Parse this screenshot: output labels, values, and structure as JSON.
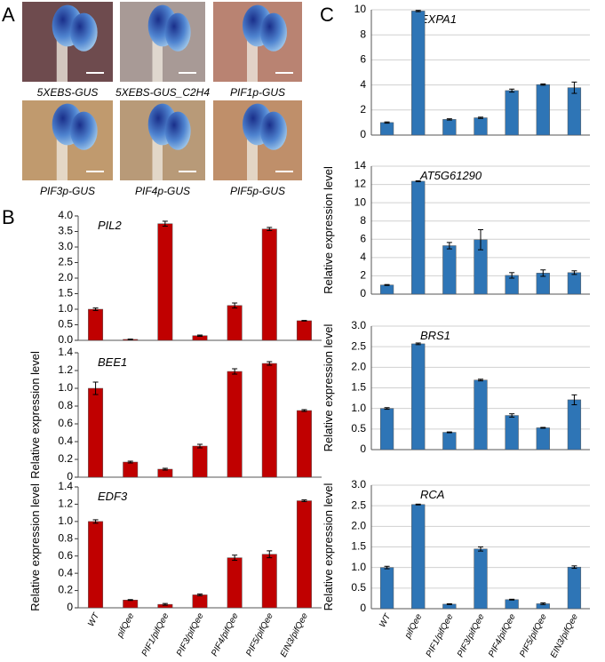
{
  "panel_labels": [
    "A",
    "B",
    "C"
  ],
  "photos": [
    {
      "caption": "5XEBS-GUS"
    },
    {
      "caption": "5XEBS-GUS_C2H4"
    },
    {
      "caption": "PIF1p-GUS"
    },
    {
      "caption": "PIF3p-GUS"
    },
    {
      "caption": "PIF4p-GUS"
    },
    {
      "caption": "PIF5p-GUS"
    }
  ],
  "chart_data": [
    {
      "type": "bar",
      "title": "PIL2",
      "color": "#c00000",
      "grid": false,
      "categories": [
        null,
        null,
        null,
        null,
        null,
        null,
        null
      ],
      "values": [
        1.0,
        0.03,
        3.75,
        0.15,
        1.12,
        3.58,
        0.63
      ],
      "errors": [
        0.04,
        0.01,
        0.08,
        0.02,
        0.08,
        0.05,
        0.01
      ],
      "ylim": [
        0,
        4
      ],
      "yticks": [
        {
          "value": 0,
          "label": "0.0"
        },
        0.5,
        {
          "value": 1,
          "label": "1.0"
        },
        1.5,
        {
          "value": 2,
          "label": "2.0"
        },
        2.5,
        {
          "value": 3,
          "label": "3.0"
        },
        3.5,
        {
          "value": 4,
          "label": "4.0"
        }
      ]
    },
    {
      "type": "bar",
      "title": "BEE1",
      "color": "#c00000",
      "grid": false,
      "ylabel": "Relative expression level",
      "categories": [
        null,
        null,
        null,
        null,
        null,
        null,
        null
      ],
      "values": [
        1.0,
        0.17,
        0.09,
        0.35,
        1.19,
        1.28,
        0.75
      ],
      "errors": [
        0.07,
        0.01,
        0.01,
        0.02,
        0.03,
        0.02,
        0.01
      ],
      "ylim": [
        0,
        1.4
      ],
      "yticks": [
        0,
        0.2,
        0.4,
        0.6,
        0.8,
        {
          "value": 1,
          "label": "1.0"
        },
        1.2,
        1.4
      ]
    },
    {
      "type": "bar",
      "title": "EDF3",
      "color": "#c00000",
      "grid": false,
      "ylabel": "Relative expression level",
      "categories": [
        "WT",
        "pifQee",
        "PIF1/pifQee",
        "PIF3/pifQee",
        "PIF4/pifQee",
        "PIF5/pifQee",
        "EIN3/pifQee"
      ],
      "values": [
        1.0,
        0.09,
        0.04,
        0.15,
        0.58,
        0.62,
        1.24
      ],
      "errors": [
        0.02,
        0.005,
        0.01,
        0.01,
        0.03,
        0.04,
        0.01
      ],
      "ylim": [
        0,
        1.4
      ],
      "yticks": [
        0,
        0.2,
        0.4,
        0.6,
        0.8,
        {
          "value": 1,
          "label": "1.0"
        },
        1.2,
        1.4
      ]
    },
    {
      "type": "bar",
      "title": "EXPA1",
      "color": "#2e75b6",
      "grid": true,
      "categories": [
        null,
        null,
        null,
        null,
        null,
        null,
        null
      ],
      "values": [
        1.0,
        9.9,
        1.25,
        1.38,
        3.55,
        4.03,
        3.78
      ],
      "errors": [
        0.05,
        0.05,
        0.05,
        0.05,
        0.12,
        0.05,
        0.45
      ],
      "ylim": [
        0,
        10
      ],
      "yticks": [
        0,
        2,
        4,
        6,
        8,
        10
      ]
    },
    {
      "type": "bar",
      "title": "AT5G61290",
      "color": "#2e75b6",
      "grid": true,
      "ylabel": "Relative expression level",
      "categories": [
        null,
        null,
        null,
        null,
        null,
        null,
        null
      ],
      "values": [
        1.0,
        12.35,
        5.3,
        5.95,
        2.05,
        2.3,
        2.35
      ],
      "errors": [
        0.05,
        0.05,
        0.35,
        1.1,
        0.3,
        0.35,
        0.2
      ],
      "ylim": [
        0,
        14
      ],
      "yticks": [
        0,
        2,
        4,
        6,
        8,
        10,
        12,
        14
      ]
    },
    {
      "type": "bar",
      "title": "BRS1",
      "color": "#2e75b6",
      "grid": true,
      "ylabel": "Relative expression level",
      "categories": [
        null,
        null,
        null,
        null,
        null,
        null,
        null
      ],
      "values": [
        1.0,
        2.57,
        0.42,
        1.69,
        0.83,
        0.53,
        1.21
      ],
      "errors": [
        0.02,
        0.02,
        0.01,
        0.02,
        0.04,
        0.01,
        0.12
      ],
      "ylim": [
        0,
        3
      ],
      "yticks": [
        0,
        0.5,
        {
          "value": 1,
          "label": "1.0"
        },
        1.5,
        {
          "value": 2,
          "label": "2.0"
        },
        2.5,
        {
          "value": 3,
          "label": "3.0"
        }
      ]
    },
    {
      "type": "bar",
      "title": "RCA",
      "color": "#2e75b6",
      "grid": true,
      "ylabel": "Relative expression level",
      "categories": [
        "WT",
        "pifQee",
        "PIF1/pifQee",
        "PIF3/pifQee",
        "PIF4/pifQee",
        "PIF5/pifQee",
        "EIN3/pifQee"
      ],
      "values": [
        1.0,
        2.53,
        0.11,
        1.45,
        0.22,
        0.12,
        1.01
      ],
      "errors": [
        0.03,
        0.01,
        0.01,
        0.05,
        0.01,
        0.02,
        0.03
      ],
      "ylim": [
        0,
        3
      ],
      "yticks": [
        0,
        0.5,
        {
          "value": 1,
          "label": "1.0"
        },
        1.5,
        {
          "value": 2,
          "label": "2.0"
        },
        2.5,
        {
          "value": 3,
          "label": "3.0"
        }
      ]
    }
  ]
}
